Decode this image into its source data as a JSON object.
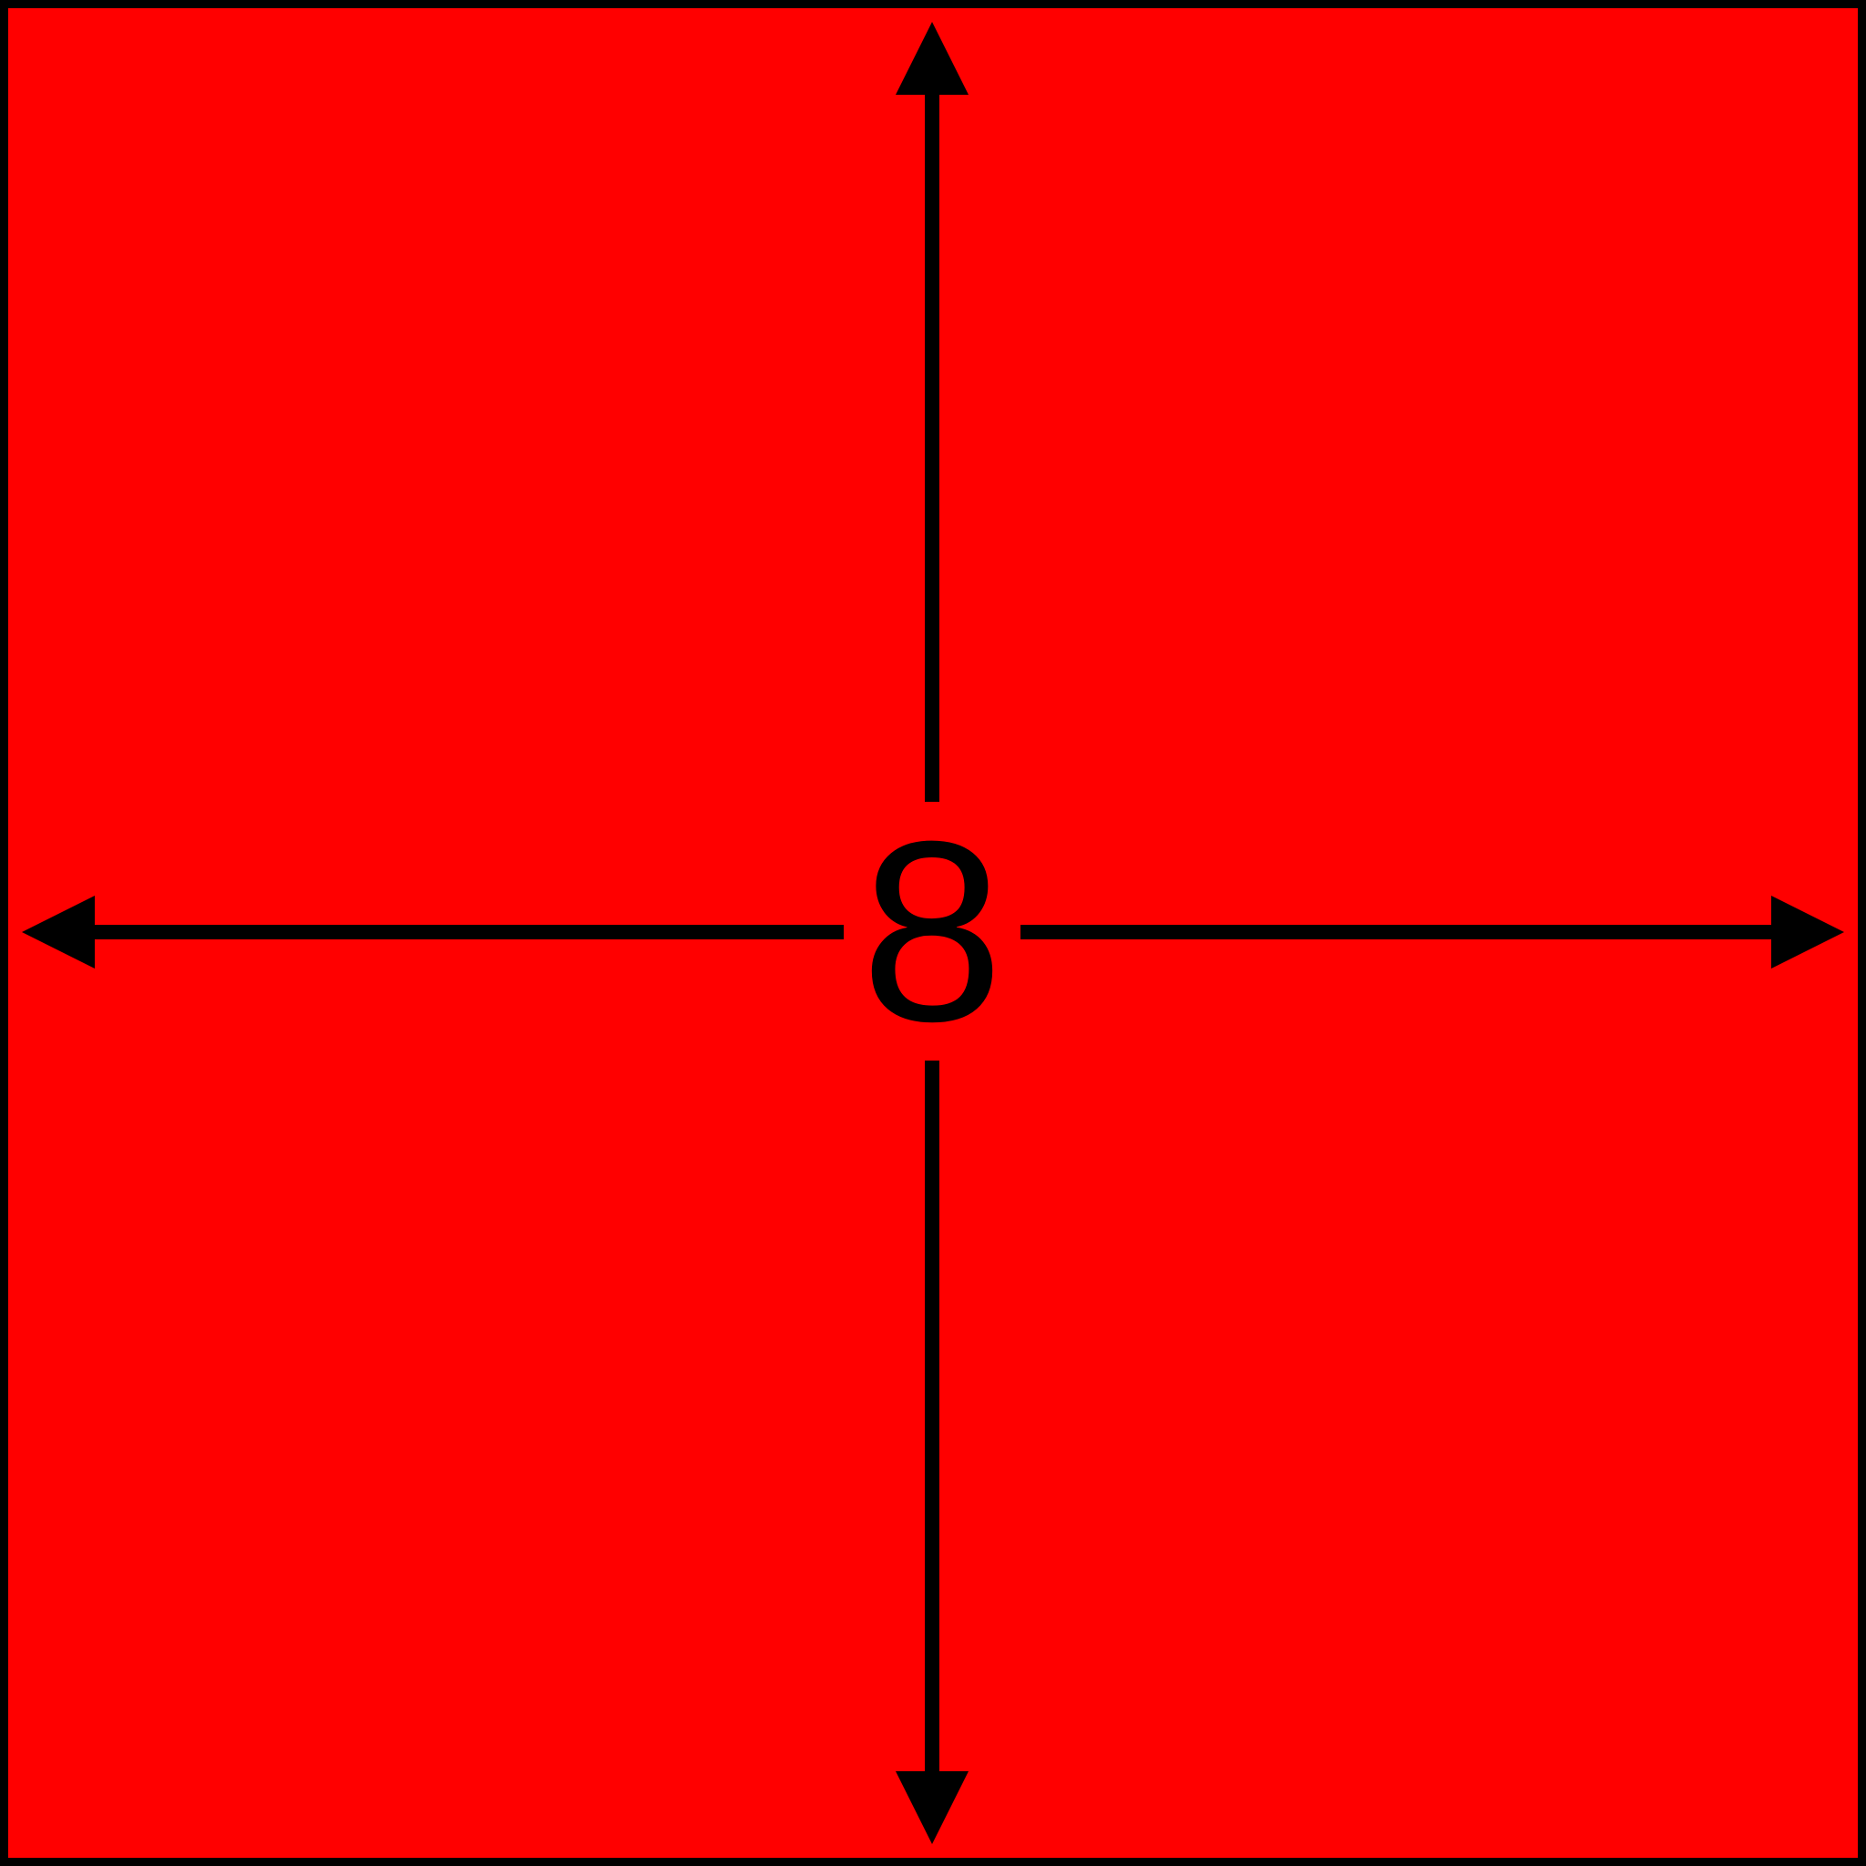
{
  "diagram": {
    "label": "8",
    "colors": {
      "fill": "#ff0000",
      "stroke": "#000000"
    },
    "arrows": [
      "up",
      "down",
      "left",
      "right"
    ]
  }
}
